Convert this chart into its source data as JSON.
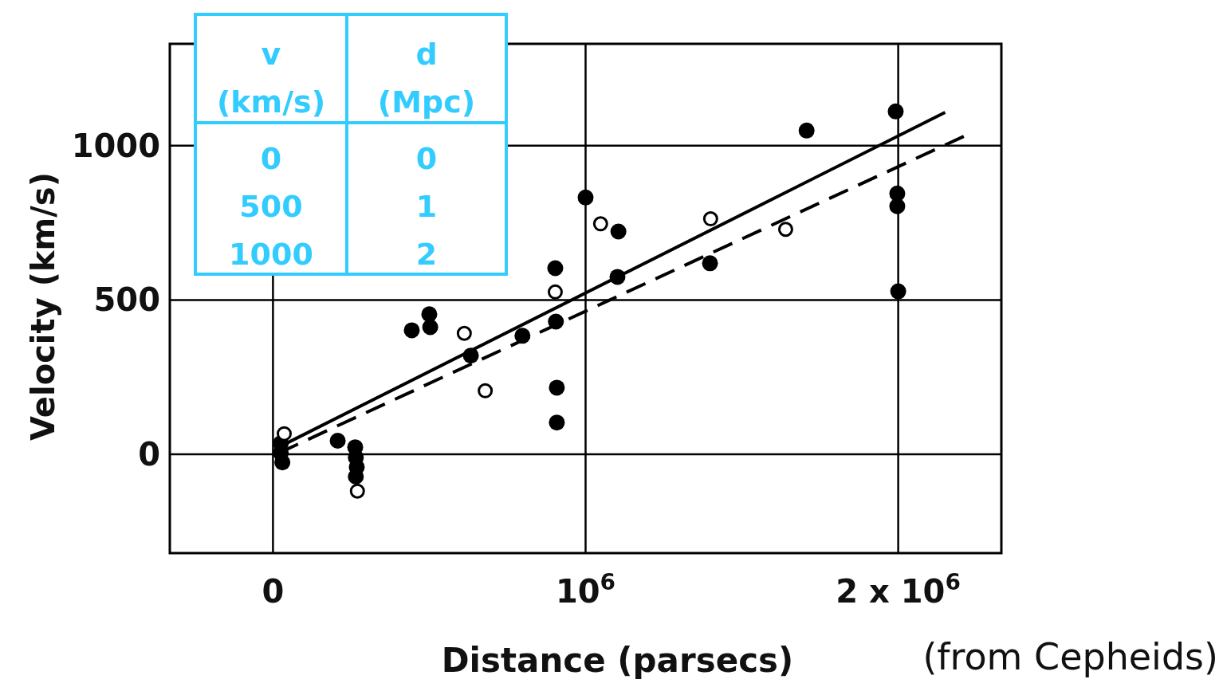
{
  "chart_data": {
    "type": "scatter",
    "xlabel": "Distance (parsecs)",
    "ylabel": "Velocity (km/s)",
    "xlim": [
      -330000,
      2330000
    ],
    "ylim": [
      -320,
      1330
    ],
    "xticks": [
      0,
      {
        "value": 1000000,
        "label": "10$^{6}$"
      },
      {
        "value": 2000000,
        "label": "2 x 10$^{6}$"
      }
    ],
    "yticks": [
      0,
      500,
      1000
    ],
    "grid": true,
    "marker": "circle",
    "series": [
      {
        "color": "#000000",
        "x": [
          25000,
          25000,
          30000,
          207000,
          263000,
          265000,
          268000,
          265000,
          444000,
          500000,
          503000,
          633000,
          798000,
          903000,
          905000,
          908000,
          908000,
          1000000,
          1105000,
          1102000,
          1398000,
          1707000,
          1992000,
          1997000,
          1997000,
          2000000
        ],
        "values": [
          36,
          5,
          -26,
          44,
          23,
          -10,
          -41,
          -72,
          402,
          454,
          412,
          320,
          384,
          603,
          430,
          216,
          103,
          832,
          722,
          575,
          619,
          1049,
          1111,
          845,
          804,
          528
        ]
      },
      {
        "color": "#000000",
        "x": [
          36000,
          270000,
          612000,
          679000,
          903000,
          1048000,
          1400000,
          1640000
        ],
        "values": [
          67,
          -119,
          392,
          206,
          526,
          747,
          763,
          729
        ]
      },
      {
        "type": "line",
        "color": "#000000",
        "line_style": "solid",
        "marker": "none",
        "x": [
          8000,
          2150000
        ],
        "values": [
          18,
          1108
        ]
      },
      {
        "type": "line",
        "color": "#000000",
        "line_style": "dashed",
        "marker": "none",
        "x": [
          20000,
          2222000
        ],
        "values": [
          5,
          1036
        ]
      }
    ],
    "annotations": [
      "v",
      "(km/s)",
      "d",
      "(Mpc)",
      "0",
      "0",
      "500",
      "1",
      "1000",
      "2",
      "(from Cepheids)"
    ]
  }
}
